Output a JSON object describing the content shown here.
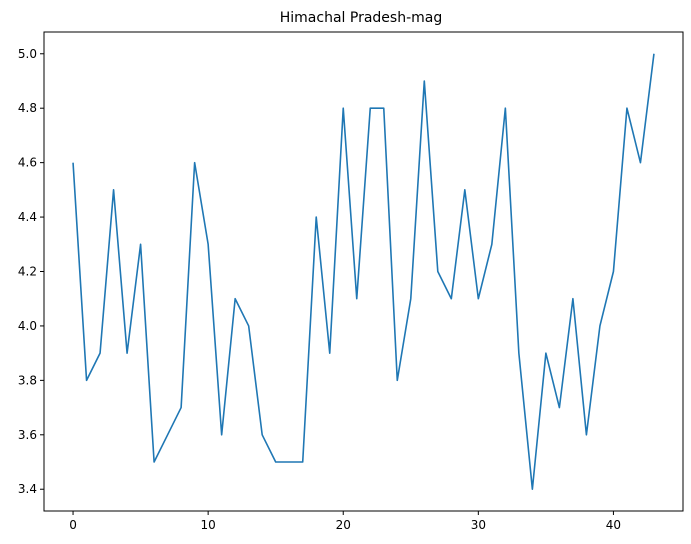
{
  "chart_data": {
    "type": "line",
    "title": "Himachal Pradesh-mag",
    "xlabel": "",
    "ylabel": "",
    "xlim": [
      -2.15,
      45.15
    ],
    "ylim": [
      3.32,
      5.08
    ],
    "xticks": [
      0,
      10,
      20,
      30,
      40
    ],
    "yticks": [
      3.4,
      3.6,
      3.8,
      4.0,
      4.2,
      4.4,
      4.6,
      4.8,
      5.0
    ],
    "grid": false,
    "line_color": "#1f77b4",
    "series": [
      {
        "x": [
          0,
          1,
          2,
          3,
          4,
          5,
          6,
          7,
          8,
          9,
          10,
          11,
          12,
          13,
          14,
          15,
          16,
          17,
          18,
          19,
          20,
          21,
          22,
          23,
          24,
          25,
          26,
          27,
          28,
          29,
          30,
          31,
          32,
          33,
          34,
          35,
          36,
          37,
          38,
          39,
          40,
          41,
          42,
          43
        ],
        "values": [
          4.6,
          3.8,
          3.9,
          4.5,
          3.9,
          4.3,
          3.5,
          3.6,
          3.7,
          4.6,
          4.3,
          3.6,
          4.1,
          4.0,
          3.6,
          3.5,
          3.5,
          3.5,
          4.4,
          3.9,
          4.8,
          4.1,
          4.8,
          4.8,
          3.8,
          4.1,
          4.9,
          4.2,
          4.1,
          4.5,
          4.1,
          4.3,
          4.8,
          3.9,
          3.4,
          3.9,
          3.7,
          4.1,
          3.6,
          4.0,
          4.2,
          4.8,
          4.6,
          5.0
        ]
      }
    ]
  }
}
